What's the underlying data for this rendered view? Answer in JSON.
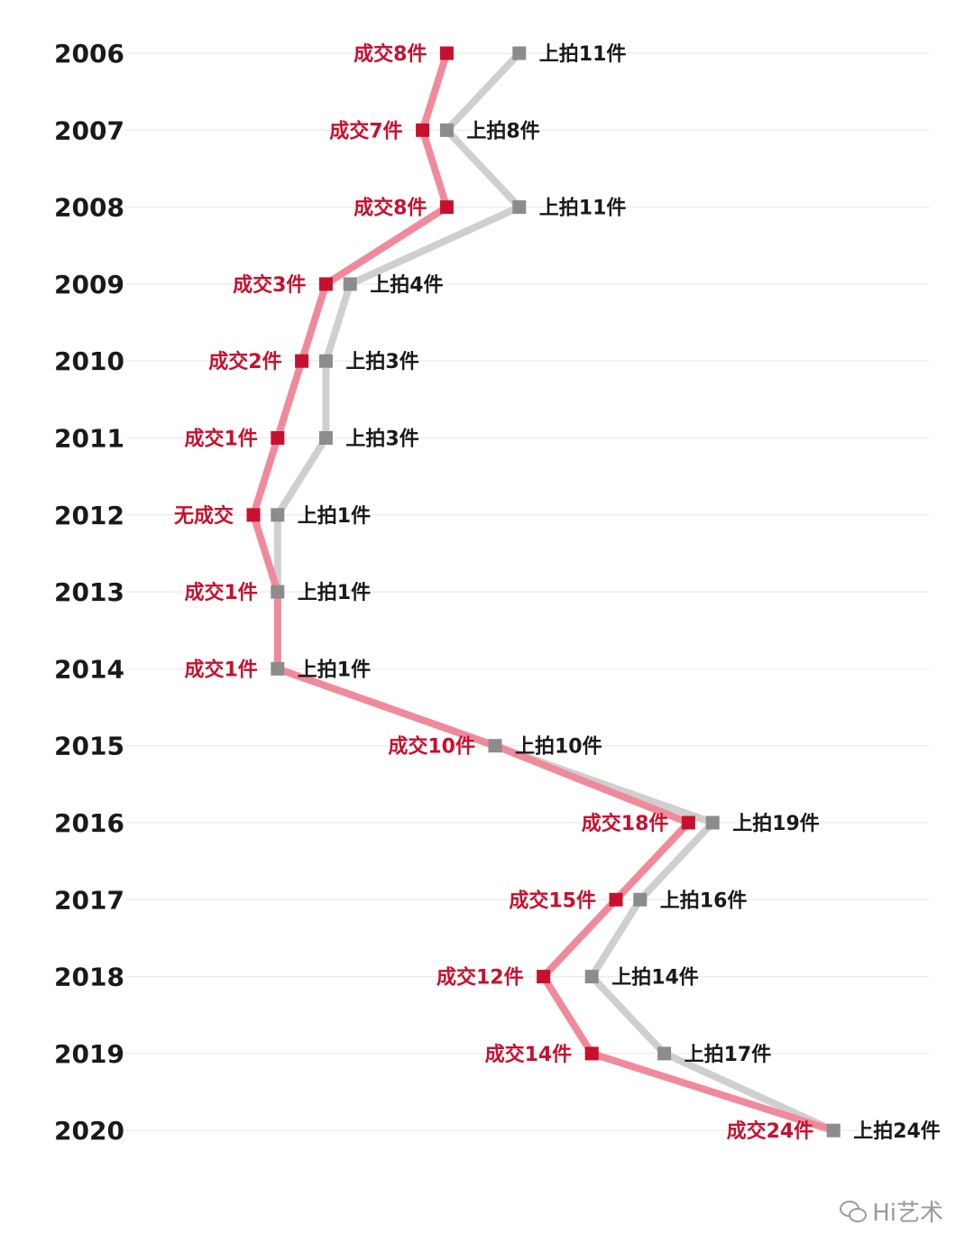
{
  "chart_data": {
    "type": "line",
    "categories": [
      "2006",
      "2007",
      "2008",
      "2009",
      "2010",
      "2011",
      "2012",
      "2013",
      "2014",
      "2015",
      "2016",
      "2017",
      "2018",
      "2019",
      "2020"
    ],
    "series": [
      {
        "key": "auctioned",
        "values": [
          11,
          8,
          11,
          4,
          3,
          3,
          1,
          1,
          1,
          10,
          19,
          16,
          14,
          17,
          24
        ],
        "color": "#8c8c8c",
        "line_color": "#cfcfcf"
      },
      {
        "key": "sold",
        "values": [
          8,
          7,
          8,
          3,
          2,
          1,
          0,
          1,
          1,
          10,
          18,
          15,
          12,
          14,
          24
        ],
        "color": "#c8102e",
        "line_color": "#f08a9b"
      }
    ],
    "labels": {
      "auctioned": [
        "上拍11件",
        "上拍8件",
        "上拍11件",
        "上拍4件",
        "上拍3件",
        "上拍3件",
        "上拍1件",
        "上拍1件",
        "上拍1件",
        "上拍10件",
        "上拍19件",
        "上拍16件",
        "上拍14件",
        "上拍17件",
        "上拍24件"
      ],
      "sold": [
        "成交8件",
        "成交7件",
        "成交8件",
        "成交3件",
        "成交2件",
        "成交1件",
        "无成交",
        "成交1件",
        "成交1件",
        "成交10件",
        "成交18件",
        "成交15件",
        "成交12件",
        "成交14件",
        "成交24件"
      ]
    },
    "grid": true,
    "orientation": "horizontal-rows"
  },
  "watermark": {
    "text": "Hi艺术",
    "icon": "wechat-icon"
  }
}
